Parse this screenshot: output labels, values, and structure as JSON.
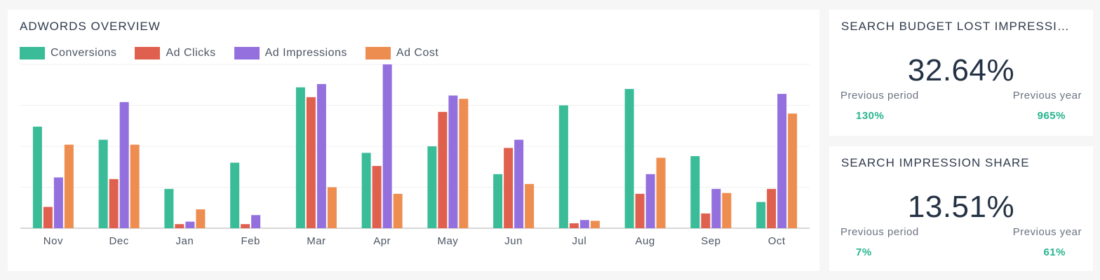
{
  "overview": {
    "title": "ADWORDS OVERVIEW"
  },
  "chart_data": {
    "type": "bar",
    "categories": [
      "Nov",
      "Dec",
      "Jan",
      "Feb",
      "Mar",
      "Apr",
      "May",
      "Jun",
      "Jul",
      "Aug",
      "Sep",
      "Oct"
    ],
    "ylim": [
      0,
      100
    ],
    "grid": true,
    "legend_position": "top-left",
    "series": [
      {
        "name": "Conversions",
        "color": "#3bbc98",
        "values": [
          62,
          54,
          24,
          40,
          86,
          46,
          50,
          33,
          75,
          85,
          44,
          16
        ]
      },
      {
        "name": "Ad Clicks",
        "color": "#e0604f",
        "values": [
          13,
          30,
          2.5,
          2.5,
          80,
          38,
          71,
          49,
          3,
          21,
          9,
          24
        ]
      },
      {
        "name": "Ad Impressions",
        "color": "#9370de",
        "values": [
          31,
          77,
          4,
          8,
          88,
          100,
          81,
          54,
          5,
          33,
          24,
          82
        ]
      },
      {
        "name": "Ad Cost",
        "color": "#ee8d50",
        "values": [
          51,
          51,
          11.5,
          0,
          25,
          21,
          79,
          27,
          4.5,
          43,
          21.5,
          70
        ]
      }
    ]
  },
  "kpi1": {
    "title": "SEARCH BUDGET LOST IMPRESSI…",
    "value": "32.64%",
    "prev_period_label": "Previous period",
    "prev_year_label": "Previous year",
    "prev_period_value": "130%",
    "prev_year_value": "965%"
  },
  "kpi2": {
    "title": "SEARCH IMPRESSION SHARE",
    "value": "13.51%",
    "prev_period_label": "Previous period",
    "prev_year_label": "Previous year",
    "prev_period_value": "7%",
    "prev_year_value": "61%"
  }
}
